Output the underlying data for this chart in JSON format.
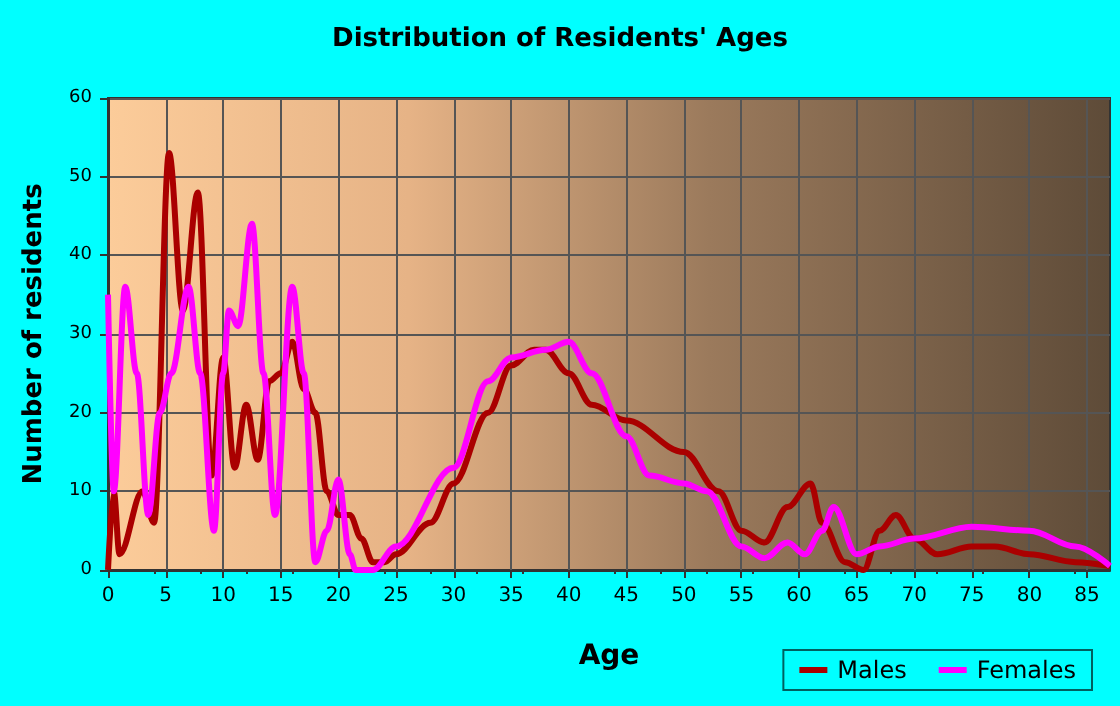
{
  "chart_data": {
    "type": "line",
    "title": "Distribution of Residents' Ages",
    "xlabel": "Age",
    "ylabel": "Number of residents",
    "xlim": [
      0,
      87
    ],
    "xticks": [
      0,
      5,
      10,
      15,
      20,
      25,
      30,
      35,
      40,
      45,
      50,
      55,
      60,
      65,
      70,
      75,
      80,
      85
    ],
    "ylim": [
      0,
      60
    ],
    "yticks": [
      0,
      10,
      20,
      30,
      40,
      50,
      60
    ],
    "grid": true,
    "legend": "bottom right",
    "marker": "none",
    "line_style": "solid",
    "series": [
      {
        "name": "Males",
        "color": "#aa0000",
        "x": [
          0,
          0.5,
          1,
          3,
          4,
          5.3,
          6.5,
          7.8,
          9,
          10,
          11,
          12,
          13,
          14,
          15,
          16,
          17,
          18,
          19,
          20,
          21,
          22,
          23,
          24,
          25,
          28,
          30,
          33,
          35,
          37,
          38,
          40,
          42,
          45,
          50,
          53,
          55,
          57,
          59,
          61,
          62,
          64,
          65.6,
          67,
          68.4,
          70,
          72,
          75,
          77,
          80,
          84,
          87
        ],
        "values": [
          0,
          10,
          2,
          10,
          6,
          53,
          33,
          48,
          12,
          27,
          13,
          21,
          14,
          24,
          25,
          29,
          23,
          20,
          10,
          7,
          7,
          4,
          1,
          1,
          2,
          6,
          11,
          20,
          26,
          28,
          28,
          25,
          21,
          19,
          15,
          10,
          5,
          3.5,
          8,
          11,
          6,
          1,
          0,
          5,
          7,
          4,
          2,
          3,
          3,
          2,
          1,
          0.5
        ]
      },
      {
        "name": "Females",
        "color": "#ff00ff",
        "x": [
          0,
          0.5,
          1.5,
          2.5,
          3.5,
          4.5,
          5.5,
          7,
          8,
          9.2,
          10,
          10.5,
          11.3,
          12.5,
          13.5,
          14.5,
          16,
          17,
          18,
          19,
          20,
          21,
          21.5,
          23,
          25,
          30,
          33,
          35,
          38,
          40,
          42,
          45,
          47,
          50,
          52,
          55,
          57,
          59,
          60.5,
          62,
          63,
          65,
          67,
          70,
          75,
          80,
          84,
          87
        ],
        "values": [
          35,
          10,
          36,
          25,
          7,
          20,
          25,
          36,
          25,
          5,
          25,
          33,
          31,
          44,
          25,
          7,
          36,
          25,
          1,
          5,
          11.5,
          2,
          0,
          0,
          3,
          13,
          24,
          27,
          28,
          29,
          25,
          17,
          12,
          11,
          10,
          3,
          1.5,
          3.5,
          2,
          5,
          8,
          2,
          3,
          4,
          5.5,
          5,
          3,
          0.5
        ]
      }
    ]
  }
}
